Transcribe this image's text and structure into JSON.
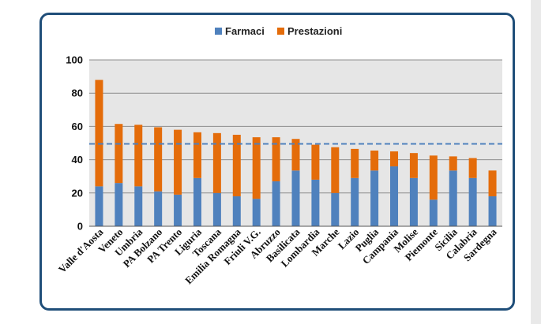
{
  "chart_data": {
    "type": "bar",
    "stacked": true,
    "categories": [
      "Valle d'Aosta",
      "Veneto",
      "Umbria",
      "PA Bolzano",
      "PA Trento",
      "Liguria",
      "Toscana",
      "Emilia Romagna",
      "Friuli V.G.",
      "Abruzzo",
      "Basilicata",
      "Lombardia",
      "Marche",
      "Lazio",
      "Puglia",
      "Campania",
      "Molise",
      "Piemonte",
      "Sicilia",
      "Calabria",
      "Sardegna"
    ],
    "series": [
      {
        "name": "Farmaci",
        "color": "#4f81bd",
        "values": [
          24,
          26,
          24,
          21,
          19,
          29,
          20,
          18,
          16.5,
          27,
          33.5,
          28,
          20,
          29,
          33.5,
          36,
          29,
          16,
          33.5,
          29,
          18
        ]
      },
      {
        "name": "Prestazioni",
        "color": "#e46c0a",
        "values": [
          64,
          35.5,
          37,
          38.5,
          39,
          27.5,
          36,
          37,
          37,
          26.5,
          19,
          21,
          27.5,
          17.5,
          12,
          9,
          15,
          26.5,
          8.5,
          12,
          15.5
        ]
      }
    ],
    "reference_line": {
      "value": 49.5,
      "style": "dashed",
      "color": "#4f81bd"
    },
    "ylim": [
      0,
      100
    ],
    "yticks": [
      "0",
      "20",
      "40",
      "60",
      "80",
      "100"
    ],
    "grid": true,
    "legend": "top-center",
    "plot_background": "#e6e6e6"
  }
}
